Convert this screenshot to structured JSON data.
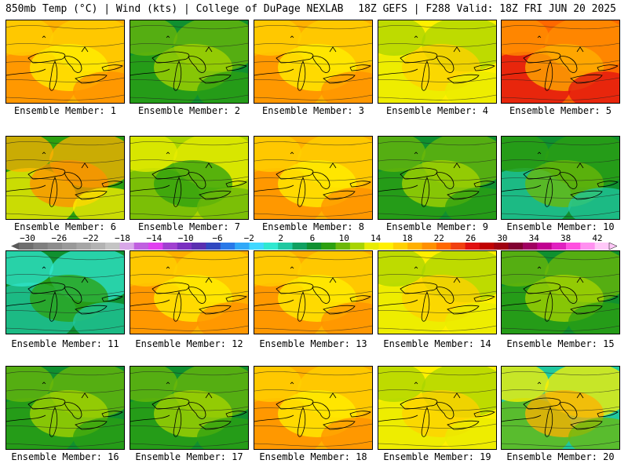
{
  "header": {
    "left": "850mb Temp (°C) | Wind (kts) | College of DuPage NEXLAB",
    "right": "18Z GEFS | F288 Valid: 18Z FRI JUN 20 2025"
  },
  "colorbar": {
    "ticks": [
      "−30",
      "−26",
      "−22",
      "−18",
      "−14",
      "−10",
      "−6",
      "−2",
      "2",
      "6",
      "10",
      "14",
      "18",
      "22",
      "26",
      "30",
      "34",
      "38",
      "42"
    ],
    "colors": [
      "#6e6e6e",
      "#7f7f7f",
      "#8c8c8c",
      "#999999",
      "#a6a6a6",
      "#b3b3b3",
      "#c4c4c4",
      "#d8a8e8",
      "#c060e0",
      "#e040f0",
      "#a040d0",
      "#7a30c0",
      "#5a2fb0",
      "#3048c0",
      "#2878e8",
      "#30a8f8",
      "#40d8ff",
      "#30e8d0",
      "#20c8a0",
      "#10a060",
      "#109030",
      "#2ca010",
      "#6cb808",
      "#a8d400",
      "#e8ec00",
      "#fff000",
      "#ffd000",
      "#ffb000",
      "#ff9000",
      "#ff6800",
      "#f04010",
      "#e01010",
      "#c00000",
      "#a00010",
      "#800030",
      "#a00060",
      "#c00090",
      "#e020c0",
      "#ff50e0",
      "#ff90f0",
      "#ffc8f8"
    ]
  },
  "members": [
    {
      "label": "Ensemble Member: 1",
      "fill": "orange"
    },
    {
      "label": "Ensemble Member: 2",
      "fill": "green"
    },
    {
      "label": "Ensemble Member: 3",
      "fill": "orange"
    },
    {
      "label": "Ensemble Member: 4",
      "fill": "yellow"
    },
    {
      "label": "Ensemble Member: 5",
      "fill": "red"
    },
    {
      "label": "Ensemble Member: 6",
      "fill": "orange-green"
    },
    {
      "label": "Ensemble Member: 7",
      "fill": "yellow-green"
    },
    {
      "label": "Ensemble Member: 8",
      "fill": "orange"
    },
    {
      "label": "Ensemble Member: 9",
      "fill": "green"
    },
    {
      "label": "Ensemble Member: 10",
      "fill": "green-teal"
    },
    {
      "label": "Ensemble Member: 11",
      "fill": "teal"
    },
    {
      "label": "Ensemble Member: 12",
      "fill": "orange"
    },
    {
      "label": "Ensemble Member: 13",
      "fill": "orange"
    },
    {
      "label": "Ensemble Member: 14",
      "fill": "yellow"
    },
    {
      "label": "Ensemble Member: 15",
      "fill": "green"
    },
    {
      "label": "Ensemble Member: 16",
      "fill": "green"
    },
    {
      "label": "Ensemble Member: 17",
      "fill": "green"
    },
    {
      "label": "Ensemble Member: 18",
      "fill": "orange"
    },
    {
      "label": "Ensemble Member: 19",
      "fill": "yellow"
    },
    {
      "label": "Ensemble Member: 20",
      "fill": "orange-teal"
    }
  ],
  "palette": {
    "orange": [
      "#ffb000",
      "#ff9000",
      "#ffd000",
      "#fff000"
    ],
    "red": [
      "#ff6800",
      "#e01010",
      "#ff9000",
      "#ffb000"
    ],
    "green": [
      "#109030",
      "#2ca010",
      "#6cb808",
      "#a8d400"
    ],
    "yellow": [
      "#fff000",
      "#e8ec00",
      "#a8d400",
      "#ffd000"
    ],
    "yellow-green": [
      "#a8d400",
      "#6cb808",
      "#e8ec00",
      "#2ca010"
    ],
    "orange-green": [
      "#2ca010",
      "#fff000",
      "#ffb000",
      "#ff9000"
    ],
    "green-teal": [
      "#109030",
      "#20c8a0",
      "#2ca010",
      "#6cb808"
    ],
    "teal": [
      "#109030",
      "#20c8a0",
      "#30e8d0",
      "#2ca010"
    ],
    "orange-teal": [
      "#20c8a0",
      "#6cb808",
      "#fff000",
      "#ffb000"
    ]
  }
}
